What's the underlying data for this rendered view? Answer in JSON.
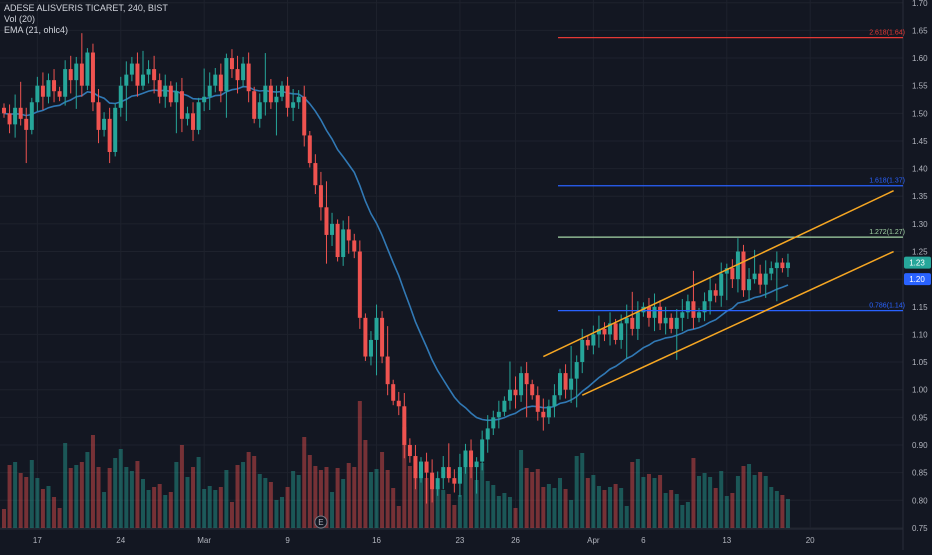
{
  "legend": {
    "line1": "ADESE ALISVERIS TICARET, 240, BIST",
    "line2": "Vol (20)",
    "line3": "EMA (21, ohlc4)"
  },
  "event_marker": "E",
  "colors": {
    "background": "#131722",
    "grid": "#1e222d",
    "up": "#26a69a",
    "down": "#ef5350",
    "ema": "#3179b5",
    "channel": "#f5a623",
    "fib_red": "#e53935",
    "fib_blue": "#2962ff",
    "fib_green": "#a5d6a7"
  },
  "chart_data": {
    "type": "candlestick",
    "symbol": "ADESE ALISVERIS TICARET",
    "interval": "240",
    "exchange": "BIST",
    "y_axis": {
      "range": [
        0.71,
        1.705
      ],
      "ticks": [
        "1.70",
        "1.65",
        "1.60",
        "1.55",
        "1.50",
        "1.45",
        "1.40",
        "1.35",
        "1.30",
        "1.25",
        "1.20",
        "1.15",
        "1.10",
        "1.05",
        "1.00",
        "0.95",
        "0.90",
        "0.85",
        "0.80",
        "0.75"
      ]
    },
    "x_labels": [
      {
        "i": 6,
        "label": "17"
      },
      {
        "i": 21,
        "label": "24"
      },
      {
        "i": 36,
        "label": "Mar"
      },
      {
        "i": 51,
        "label": "9"
      },
      {
        "i": 67,
        "label": "16"
      },
      {
        "i": 82,
        "label": "23"
      },
      {
        "i": 92,
        "label": "26"
      },
      {
        "i": 106,
        "label": "Apr"
      },
      {
        "i": 115,
        "label": "6"
      },
      {
        "i": 130,
        "label": "13"
      },
      {
        "i": 145,
        "label": "20"
      }
    ],
    "close": [
      1.5,
      1.48,
      1.51,
      1.49,
      1.47,
      1.52,
      1.55,
      1.53,
      1.56,
      1.54,
      1.53,
      1.58,
      1.56,
      1.59,
      1.55,
      1.61,
      1.52,
      1.47,
      1.49,
      1.43,
      1.51,
      1.55,
      1.57,
      1.59,
      1.55,
      1.57,
      1.58,
      1.56,
      1.53,
      1.55,
      1.52,
      1.54,
      1.49,
      1.5,
      1.47,
      1.52,
      1.53,
      1.55,
      1.57,
      1.54,
      1.6,
      1.58,
      1.56,
      1.59,
      1.54,
      1.49,
      1.52,
      1.55,
      1.52,
      1.53,
      1.55,
      1.51,
      1.52,
      1.53,
      1.46,
      1.41,
      1.37,
      1.33,
      1.28,
      1.3,
      1.24,
      1.29,
      1.27,
      1.25,
      1.13,
      1.06,
      1.09,
      1.13,
      1.06,
      1.01,
      0.98,
      0.97,
      0.9,
      0.88,
      0.84,
      0.87,
      0.85,
      0.82,
      0.84,
      0.86,
      0.84,
      0.83,
      0.86,
      0.89,
      0.86,
      0.87,
      0.91,
      0.93,
      0.95,
      0.96,
      0.98,
      1.0,
      0.99,
      1.03,
      1.01,
      0.99,
      0.96,
      0.95,
      0.97,
      0.99,
      1.03,
      1.0,
      1.02,
      1.05,
      1.09,
      1.08,
      1.1,
      1.11,
      1.1,
      1.12,
      1.09,
      1.12,
      1.13,
      1.11,
      1.14,
      1.15,
      1.13,
      1.15,
      1.12,
      1.13,
      1.11,
      1.13,
      1.14,
      1.16,
      1.13,
      1.14,
      1.16,
      1.18,
      1.17,
      1.21,
      1.22,
      1.2,
      1.25,
      1.18,
      1.2,
      1.21,
      1.19,
      1.21,
      1.22,
      1.23,
      1.22,
      1.23
    ],
    "channel_lines": [
      {
        "from": {
          "i": 97,
          "price": 1.06
        },
        "to": {
          "i": 160,
          "price": 1.36
        }
      },
      {
        "from": {
          "i": 104,
          "price": 0.99
        },
        "to": {
          "i": 160,
          "price": 1.25
        }
      }
    ],
    "fib_levels": [
      {
        "label": "2.618(1.64)",
        "price": 1.637,
        "color": "#e53935"
      },
      {
        "label": "1.618(1.37)",
        "price": 1.369,
        "color": "#2962ff"
      },
      {
        "label": "1.272(1.27)",
        "price": 1.276,
        "color": "#a5d6a7"
      },
      {
        "label": "0.786(1.14)",
        "price": 1.143,
        "color": "#2962ff"
      }
    ],
    "price_tags": [
      {
        "label": "1.23",
        "price": 1.23,
        "color": "#26a69a"
      },
      {
        "label": "1.20",
        "price": 1.2,
        "color": "#2962ff"
      }
    ]
  }
}
